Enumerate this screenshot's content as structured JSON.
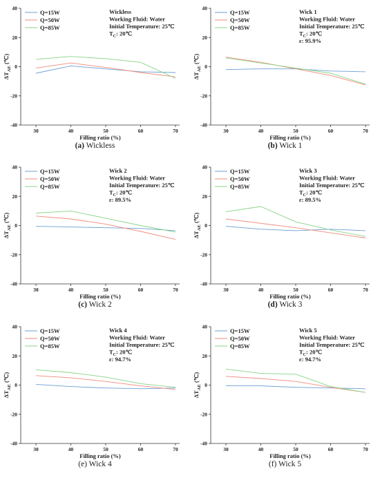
{
  "chart_data": [
    {
      "type": "line",
      "x": [
        30,
        40,
        50,
        60,
        70
      ],
      "xlabel": "Filling ratio (%)",
      "ylabel": "ΔT",
      "ylabel_sub": "AE",
      "ylabel_unit": "(℃)",
      "xlim": [
        30,
        70
      ],
      "ylim": [
        -40,
        40
      ],
      "yticks": [
        -40,
        -20,
        0,
        20,
        40
      ],
      "caption_letter": "(a)",
      "caption_text": " Wickless",
      "annotation": {
        "title": "Wickless",
        "lines": [
          "Working Fluid: Water",
          "Initial Temperature: 25℃"
        ],
        "tc": ": 20℃",
        "eps": ""
      },
      "series": [
        {
          "name": "Q=15W",
          "values": [
            -4.5,
            0.5,
            -1.5,
            -3.5,
            -4.0
          ]
        },
        {
          "name": "Q=50W",
          "values": [
            -1.0,
            2.5,
            -0.5,
            -4.0,
            -7.0
          ]
        },
        {
          "name": "Q=85W",
          "values": [
            5.0,
            7.0,
            5.5,
            3.0,
            -8.0
          ]
        }
      ]
    },
    {
      "type": "line",
      "x": [
        30,
        40,
        50,
        60,
        70
      ],
      "xlabel": "Filling ratio (%)",
      "ylabel": "ΔT",
      "ylabel_sub": "AE",
      "ylabel_unit": "(℃)",
      "xlim": [
        30,
        70
      ],
      "ylim": [
        -40,
        40
      ],
      "yticks": [
        -40,
        -20,
        0,
        20,
        40
      ],
      "caption_letter": "(b)",
      "caption_text": " Wick 1",
      "annotation": {
        "title": "Wick 1",
        "lines": [
          "Working Fluid: Water",
          "Initial Temperature: 25℃"
        ],
        "tc": ": 20℃",
        "eps": "ε: 95.9%"
      },
      "series": [
        {
          "name": "Q=15W",
          "values": [
            -2.0,
            -1.5,
            -1.5,
            -3.0,
            -3.5
          ]
        },
        {
          "name": "Q=50W",
          "values": [
            6.5,
            3.0,
            -1.5,
            -6.0,
            -12.5
          ]
        },
        {
          "name": "Q=85W",
          "values": [
            6.0,
            2.5,
            -1.0,
            -4.5,
            -12.0
          ]
        }
      ]
    },
    {
      "type": "line",
      "x": [
        30,
        40,
        50,
        60,
        70
      ],
      "xlabel": "Filling ratio (%)",
      "ylabel": "ΔT",
      "ylabel_sub": "AE",
      "ylabel_unit": "(℃)",
      "xlim": [
        30,
        70
      ],
      "ylim": [
        -40,
        40
      ],
      "yticks": [
        -40,
        -20,
        0,
        20,
        40
      ],
      "caption_letter": "(c)",
      "caption_text": " Wick 2",
      "annotation": {
        "title": "Wick 2",
        "lines": [
          "Working Fluid: Water",
          "Initial Temperature: 25℃"
        ],
        "tc": ": 20℃",
        "eps": "ε: 89.5%"
      },
      "series": [
        {
          "name": "Q=15W",
          "values": [
            -0.5,
            -1.0,
            -1.5,
            -2.0,
            -3.5
          ]
        },
        {
          "name": "Q=50W",
          "values": [
            6.5,
            4.5,
            1.0,
            -4.0,
            -9.5
          ]
        },
        {
          "name": "Q=85W",
          "values": [
            8.5,
            10.0,
            5.0,
            0.0,
            -4.5
          ]
        }
      ]
    },
    {
      "type": "line",
      "x": [
        30,
        40,
        50,
        60,
        70
      ],
      "xlabel": "Filling ratio (%)",
      "ylabel": "ΔT",
      "ylabel_sub": "AE",
      "ylabel_unit": "(℃)",
      "xlim": [
        30,
        70
      ],
      "ylim": [
        -40,
        40
      ],
      "yticks": [
        -40,
        -20,
        0,
        20,
        40
      ],
      "caption_letter": "(d)",
      "caption_text": " Wick 3",
      "annotation": {
        "title": "Wick 3",
        "lines": [
          "Working Fluid: Water",
          "Initial Temperature: 25℃"
        ],
        "tc": ": 20℃",
        "eps": "ε: 89.5%"
      },
      "series": [
        {
          "name": "Q=15W",
          "values": [
            -0.5,
            -2.5,
            -3.5,
            -2.5,
            -3.5
          ]
        },
        {
          "name": "Q=50W",
          "values": [
            4.5,
            1.5,
            -1.5,
            -5.0,
            -8.5
          ]
        },
        {
          "name": "Q=85W",
          "values": [
            9.5,
            13.0,
            2.5,
            -3.0,
            -7.5
          ]
        }
      ]
    },
    {
      "type": "line",
      "x": [
        30,
        40,
        50,
        60,
        70
      ],
      "xlabel": "Filling ratio (%)",
      "ylabel": "ΔT",
      "ylabel_sub": "AE",
      "ylabel_unit": "(℃)",
      "xlim": [
        30,
        70
      ],
      "ylim": [
        -40,
        40
      ],
      "yticks": [
        -40,
        -20,
        0,
        20,
        40
      ],
      "caption_letter": "",
      "caption_text": "(e) Wick 4",
      "annotation": {
        "title": "Wick 4",
        "lines": [
          "Working Fluid: Water",
          "Initial Temperature: 25℃"
        ],
        "tc": ": 20℃",
        "eps": "ε: 94.7%"
      },
      "series": [
        {
          "name": "Q=15W",
          "values": [
            0.5,
            -1.0,
            -2.0,
            -2.5,
            -2.0
          ]
        },
        {
          "name": "Q=50W",
          "values": [
            6.5,
            5.0,
            2.5,
            -0.5,
            -3.0
          ]
        },
        {
          "name": "Q=85W",
          "values": [
            10.5,
            8.5,
            5.5,
            1.0,
            -1.5
          ]
        }
      ]
    },
    {
      "type": "line",
      "x": [
        30,
        40,
        50,
        60,
        70
      ],
      "xlabel": "Filling ratio (%)",
      "ylabel": "ΔT",
      "ylabel_sub": "AE",
      "ylabel_unit": "(℃)",
      "xlim": [
        30,
        70
      ],
      "ylim": [
        -40,
        40
      ],
      "yticks": [
        -40,
        -20,
        0,
        20,
        40
      ],
      "caption_letter": "",
      "caption_text": "(f) Wick 5",
      "annotation": {
        "title": "Wick 5",
        "lines": [
          "Working Fluid: Water",
          "Initial Temperature: 25℃"
        ],
        "tc": ": 20℃",
        "eps": "ε: 94.7%"
      },
      "series": [
        {
          "name": "Q=15W",
          "values": [
            -0.5,
            -0.5,
            -1.5,
            -2.0,
            -2.5
          ]
        },
        {
          "name": "Q=50W",
          "values": [
            6.0,
            4.5,
            2.5,
            -1.5,
            -5.0
          ]
        },
        {
          "name": "Q=85W",
          "values": [
            11.0,
            8.0,
            7.5,
            -1.0,
            -5.0
          ]
        }
      ]
    }
  ],
  "colors": {
    "Q=15W": "#6a9fd4",
    "Q=50W": "#f08a7a",
    "Q=85W": "#86d486",
    "axis": "#333333"
  }
}
